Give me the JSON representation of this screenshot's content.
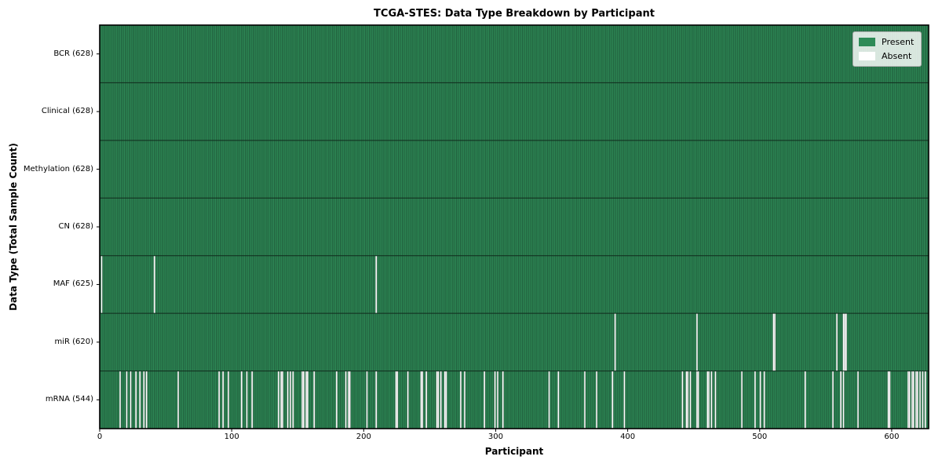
{
  "chart_data": {
    "type": "heatmap",
    "title": "TCGA-STES: Data Type Breakdown by Participant",
    "xlabel": "Participant",
    "ylabel": "Data Type (Total Sample Count)",
    "xlim": [
      0,
      628
    ],
    "x_ticks": [
      0,
      100,
      200,
      300,
      400,
      500,
      600
    ],
    "grid": false,
    "legend_position": "upper right",
    "legend": [
      {
        "label": "Present",
        "color": "#2e8b57"
      },
      {
        "label": "Absent",
        "color": "#ffffff"
      }
    ],
    "colors": {
      "present": "#2e8b57",
      "absent": "#ffffff",
      "cell_edge": "#1c4f33",
      "row_separator": "#102a1c",
      "axis_spine": "#000000"
    },
    "rows": [
      {
        "label": "BCR (628)",
        "data_type": "BCR",
        "present_count": 628,
        "absent_participants": []
      },
      {
        "label": "Clinical (628)",
        "data_type": "Clinical",
        "present_count": 628,
        "absent_participants": []
      },
      {
        "label": "Methylation (628)",
        "data_type": "Methylation",
        "present_count": 628,
        "absent_participants": []
      },
      {
        "label": "CN (628)",
        "data_type": "CN",
        "present_count": 628,
        "absent_participants": []
      },
      {
        "label": "MAF (625)",
        "data_type": "MAF",
        "present_count": 625,
        "absent_participants": [
          1,
          41,
          209
        ]
      },
      {
        "label": "miR (620)",
        "data_type": "miR",
        "present_count": 620,
        "absent_participants": [
          390,
          452,
          510,
          511,
          558,
          563,
          564,
          565
        ]
      },
      {
        "label": "mRNA (544)",
        "data_type": "mRNA",
        "present_count": 544,
        "absent_participants": [
          15,
          20,
          23,
          27,
          30,
          33,
          35,
          59,
          90,
          93,
          97,
          107,
          111,
          115,
          135,
          137,
          138,
          142,
          144,
          146,
          153,
          154,
          156,
          157,
          162,
          179,
          186,
          188,
          189,
          202,
          209,
          224,
          225,
          233,
          243,
          244,
          247,
          255,
          256,
          258,
          261,
          262,
          273,
          276,
          291,
          299,
          301,
          305,
          340,
          347,
          367,
          376,
          388,
          397,
          441,
          444,
          445,
          447,
          452,
          453,
          460,
          461,
          463,
          466,
          486,
          496,
          500,
          503,
          534,
          555,
          561,
          563,
          574,
          597,
          598,
          612,
          613,
          615,
          616,
          618,
          619,
          621,
          623,
          625
        ]
      }
    ]
  }
}
